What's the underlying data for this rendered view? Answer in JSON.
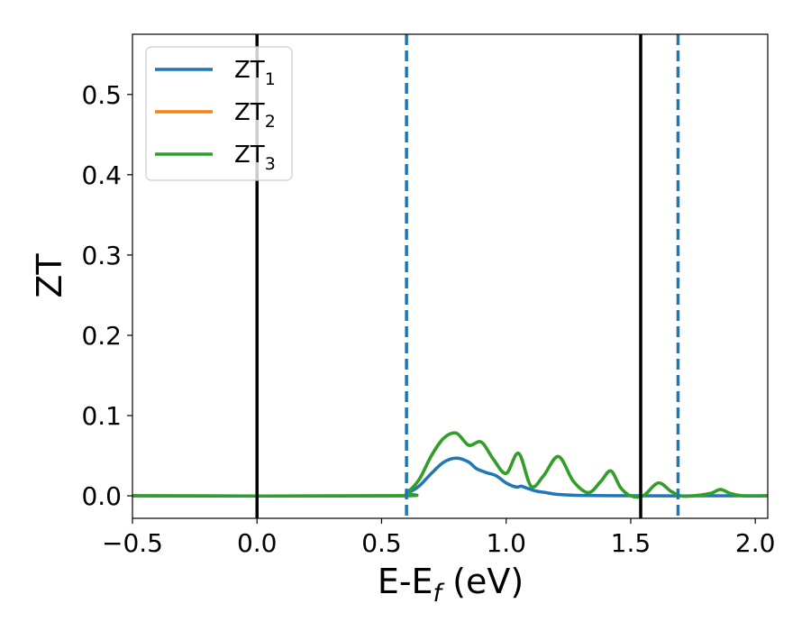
{
  "chart_data": {
    "type": "line",
    "xlabel": {
      "main": "E-E",
      "sub": "f",
      "suffix": " (eV)"
    },
    "ylabel": "ZT",
    "xlim": [
      -0.5,
      2.05
    ],
    "ylim": [
      -0.028,
      0.575
    ],
    "xticks": [
      -0.5,
      0.0,
      0.5,
      1.0,
      1.5,
      2.0
    ],
    "xtick_labels": [
      "−0.5",
      "0.0",
      "0.5",
      "1.0",
      "1.5",
      "2.0"
    ],
    "yticks": [
      0.0,
      0.1,
      0.2,
      0.3,
      0.4,
      0.5
    ],
    "ytick_labels": [
      "0.0",
      "0.1",
      "0.2",
      "0.3",
      "0.4",
      "0.5"
    ],
    "legend_position": "top-left",
    "grid": false,
    "series": [
      {
        "name": "ZT",
        "sub": "1",
        "color": "#1f77b4",
        "x": [
          -0.5,
          0.55,
          0.6,
          0.65,
          0.7,
          0.75,
          0.8,
          0.85,
          0.88,
          0.92,
          0.96,
          1.0,
          1.04,
          1.06,
          1.08,
          1.12,
          1.16,
          1.2,
          1.25,
          1.3,
          1.4,
          1.55,
          1.8,
          2.05
        ],
        "y": [
          0.0,
          0.0,
          0.003,
          0.012,
          0.028,
          0.042,
          0.047,
          0.042,
          0.034,
          0.029,
          0.025,
          0.016,
          0.011,
          0.012,
          0.01,
          0.006,
          0.004,
          0.002,
          0.001,
          0.0005,
          0.0002,
          0.0,
          0.0,
          0.0
        ]
      },
      {
        "name": "ZT",
        "sub": "2",
        "color": "#ff7f0e",
        "x": [
          -0.5,
          0.55,
          0.6,
          0.65,
          0.7,
          0.75,
          0.8,
          0.85,
          0.9,
          0.95,
          1.0,
          1.05,
          1.1,
          1.15,
          1.21,
          1.27,
          1.33,
          1.38,
          1.42,
          1.46,
          1.5,
          1.55,
          1.61,
          1.66,
          1.7,
          1.75,
          1.82,
          1.86,
          1.9,
          1.95,
          2.05
        ],
        "y": [
          0.0,
          0.0,
          0.004,
          0.02,
          0.05,
          0.072,
          0.078,
          0.063,
          0.067,
          0.045,
          0.028,
          0.053,
          0.012,
          0.025,
          0.049,
          0.018,
          0.004,
          0.018,
          0.031,
          0.01,
          0.0,
          0.0,
          0.016,
          0.006,
          0.0,
          0.0,
          0.003,
          0.008,
          0.003,
          0.0,
          0.0
        ]
      },
      {
        "name": "ZT",
        "sub": "3",
        "color": "#2ca02c",
        "x": [
          -0.5,
          0.55,
          0.6,
          0.65,
          0.7,
          0.75,
          0.8,
          0.85,
          0.9,
          0.95,
          1.0,
          1.05,
          1.1,
          1.15,
          1.21,
          1.27,
          1.33,
          1.38,
          1.42,
          1.46,
          1.5,
          1.55,
          1.61,
          1.66,
          1.7,
          1.75,
          1.82,
          1.86,
          1.9,
          1.95,
          2.05
        ],
        "y": [
          0.0,
          0.0,
          0.004,
          0.02,
          0.05,
          0.072,
          0.078,
          0.063,
          0.067,
          0.045,
          0.028,
          0.053,
          0.012,
          0.025,
          0.049,
          0.018,
          0.004,
          0.018,
          0.031,
          0.01,
          0.0,
          0.0,
          0.016,
          0.006,
          0.0,
          0.0,
          0.003,
          0.008,
          0.003,
          0.0,
          0.0
        ]
      }
    ],
    "vlines": [
      {
        "x": 0.0,
        "style": "solid",
        "color": "#000000"
      },
      {
        "x": 0.6,
        "style": "dashed",
        "color": "#1f77b4"
      },
      {
        "x": 1.54,
        "style": "solid",
        "color": "#000000"
      },
      {
        "x": 1.69,
        "style": "dashed",
        "color": "#1f77b4"
      }
    ]
  }
}
